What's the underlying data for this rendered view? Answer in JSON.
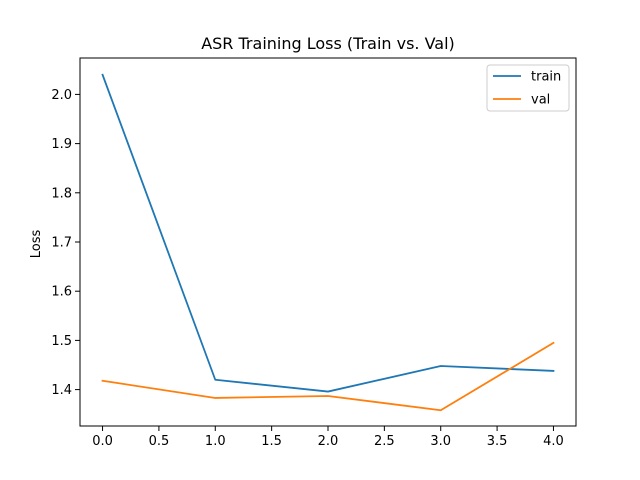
{
  "chart_data": {
    "type": "line",
    "title": "ASR Training Loss (Train vs. Val)",
    "xlabel": "",
    "ylabel": "Loss",
    "x": [
      0,
      1,
      2,
      3,
      4
    ],
    "xlim": [
      -0.2,
      4.2
    ],
    "ylim": [
      1.326,
      2.074
    ],
    "xticks": [
      0.0,
      0.5,
      1.0,
      1.5,
      2.0,
      2.5,
      3.0,
      3.5,
      4.0
    ],
    "xtick_labels": [
      "0.0",
      "0.5",
      "1.0",
      "1.5",
      "2.0",
      "2.5",
      "3.0",
      "3.5",
      "4.0"
    ],
    "yticks": [
      1.4,
      1.5,
      1.6,
      1.7,
      1.8,
      1.9,
      2.0
    ],
    "ytick_labels": [
      "1.4",
      "1.5",
      "1.6",
      "1.7",
      "1.8",
      "1.9",
      "2.0"
    ],
    "grid": false,
    "legend_position": "top-right",
    "series": [
      {
        "name": "train",
        "color": "#1f77b4",
        "values": [
          2.04,
          1.42,
          1.396,
          1.448,
          1.438
        ]
      },
      {
        "name": "val",
        "color": "#ff7f0e",
        "values": [
          1.418,
          1.383,
          1.387,
          1.358,
          1.495
        ]
      }
    ]
  }
}
